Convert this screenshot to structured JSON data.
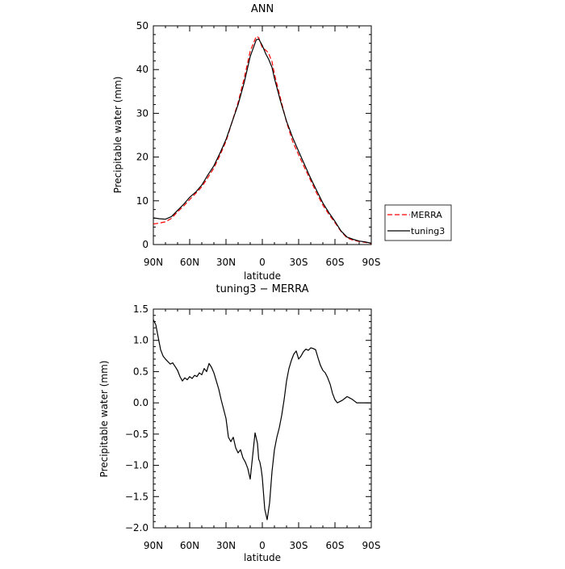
{
  "chart_data": [
    {
      "type": "line",
      "title": "ANN",
      "xlabel": "latitude",
      "ylabel": "Precipitable water (mm)",
      "x_tick_values": [
        90,
        60,
        30,
        0,
        -30,
        -60,
        -90
      ],
      "x_tick_labels": [
        "90N",
        "60N",
        "30N",
        "0",
        "30S",
        "60S",
        "90S"
      ],
      "xlim": [
        90,
        -90
      ],
      "ylim": [
        0,
        50
      ],
      "y_ticks": [
        0,
        10,
        20,
        30,
        40,
        50
      ],
      "y_tick_labels": [
        "0",
        "10",
        "20",
        "30",
        "40",
        "50"
      ],
      "grid": false,
      "legend": {
        "position": "right",
        "entries": [
          "MERRA",
          "tuning3"
        ]
      },
      "series": [
        {
          "name": "MERRA",
          "color": "#ff0000",
          "dash": "dashed",
          "x": [
            90,
            85,
            80,
            75,
            70,
            65,
            60,
            55,
            50,
            45,
            40,
            35,
            30,
            25,
            20,
            15,
            10,
            5,
            3,
            0,
            -3,
            -5,
            -8,
            -10,
            -15,
            -20,
            -25,
            -30,
            -35,
            -40,
            -45,
            -50,
            -55,
            -60,
            -65,
            -70,
            -75,
            -80,
            -85,
            -90
          ],
          "y": [
            4.7,
            4.9,
            5.2,
            6.0,
            7.5,
            8.8,
            10.3,
            11.7,
            13.2,
            15.3,
            17.5,
            20.4,
            23.6,
            28.0,
            32.5,
            38.0,
            44.2,
            47.6,
            47.3,
            45.0,
            44.4,
            43.8,
            41.8,
            39.0,
            33.4,
            28.0,
            23.6,
            20.5,
            17.5,
            14.6,
            11.7,
            9.0,
            6.9,
            5.0,
            3.0,
            1.5,
            1.0,
            0.7,
            0.5,
            0.2
          ]
        },
        {
          "name": "tuning3",
          "color": "#000000",
          "dash": "solid",
          "x": [
            90,
            85,
            80,
            75,
            70,
            65,
            60,
            55,
            50,
            45,
            40,
            35,
            30,
            25,
            20,
            15,
            10,
            5,
            3,
            0,
            -3,
            -5,
            -8,
            -10,
            -15,
            -20,
            -25,
            -30,
            -35,
            -40,
            -45,
            -50,
            -55,
            -60,
            -65,
            -70,
            -75,
            -80,
            -85,
            -90
          ],
          "y": [
            6.1,
            5.9,
            5.8,
            6.4,
            7.8,
            9.2,
            10.8,
            12.0,
            13.6,
            15.9,
            18.0,
            20.9,
            24.0,
            28.0,
            32.0,
            37.0,
            43.0,
            46.8,
            47.0,
            45.5,
            43.5,
            42.5,
            40.5,
            38.0,
            32.8,
            28.2,
            24.5,
            21.3,
            18.2,
            15.1,
            12.3,
            9.5,
            7.3,
            5.3,
            3.1,
            1.7,
            1.2,
            0.8,
            0.6,
            0.3
          ]
        }
      ]
    },
    {
      "type": "line",
      "title": "tuning3 − MERRA",
      "xlabel": "latitude",
      "ylabel": "Precipitable water (mm)",
      "x_tick_values": [
        90,
        60,
        30,
        0,
        -30,
        -60,
        -90
      ],
      "x_tick_labels": [
        "90N",
        "60N",
        "30N",
        "0",
        "30S",
        "60S",
        "90S"
      ],
      "xlim": [
        90,
        -90
      ],
      "ylim": [
        -2.0,
        1.5
      ],
      "y_ticks": [
        -2.0,
        -1.5,
        -1.0,
        -0.5,
        0.0,
        0.5,
        1.0,
        1.5
      ],
      "y_tick_labels": [
        "−2.0",
        "−1.5",
        "−1.0",
        "−0.5",
        "0.0",
        "0.5",
        "1.0",
        "1.5"
      ],
      "grid": false,
      "series": [
        {
          "color": "#000000",
          "dash": "solid",
          "x": [
            90,
            88,
            86,
            84,
            82,
            80,
            78,
            76,
            74,
            72,
            70,
            68,
            66,
            64,
            62,
            60,
            58,
            56,
            54,
            52,
            50,
            48,
            46,
            44,
            42,
            40,
            38,
            36,
            34,
            32,
            30,
            28,
            26,
            24,
            22,
            20,
            18,
            16,
            14,
            12,
            10,
            8,
            6,
            4,
            3,
            2,
            1,
            0,
            -1,
            -2,
            -4,
            -6,
            -8,
            -10,
            -12,
            -14,
            -16,
            -18,
            -20,
            -22,
            -24,
            -26,
            -28,
            -30,
            -32,
            -34,
            -36,
            -38,
            -40,
            -42,
            -44,
            -46,
            -48,
            -50,
            -52,
            -54,
            -56,
            -58,
            -60,
            -62,
            -64,
            -66,
            -68,
            -70,
            -72,
            -74,
            -76,
            -78,
            -80,
            -82,
            -84,
            -86,
            -88,
            -90
          ],
          "y": [
            1.33,
            1.25,
            1.05,
            0.85,
            0.75,
            0.7,
            0.66,
            0.62,
            0.64,
            0.58,
            0.52,
            0.42,
            0.35,
            0.4,
            0.37,
            0.42,
            0.39,
            0.44,
            0.42,
            0.48,
            0.45,
            0.55,
            0.5,
            0.63,
            0.57,
            0.48,
            0.35,
            0.22,
            0.05,
            -0.1,
            -0.25,
            -0.55,
            -0.62,
            -0.55,
            -0.72,
            -0.8,
            -0.75,
            -0.88,
            -0.95,
            -1.05,
            -1.22,
            -0.85,
            -0.48,
            -0.65,
            -0.9,
            -0.95,
            -1.05,
            -1.2,
            -1.45,
            -1.7,
            -1.87,
            -1.6,
            -1.1,
            -0.75,
            -0.55,
            -0.4,
            -0.2,
            0.05,
            0.35,
            0.55,
            0.68,
            0.78,
            0.83,
            0.7,
            0.75,
            0.82,
            0.86,
            0.84,
            0.88,
            0.87,
            0.85,
            0.72,
            0.6,
            0.52,
            0.48,
            0.4,
            0.3,
            0.15,
            0.05,
            0.0,
            0.02,
            0.04,
            0.07,
            0.1,
            0.08,
            0.06,
            0.03,
            0.0,
            0.0,
            0.0,
            0.0,
            0.0,
            0.0,
            0.0
          ]
        }
      ]
    }
  ]
}
